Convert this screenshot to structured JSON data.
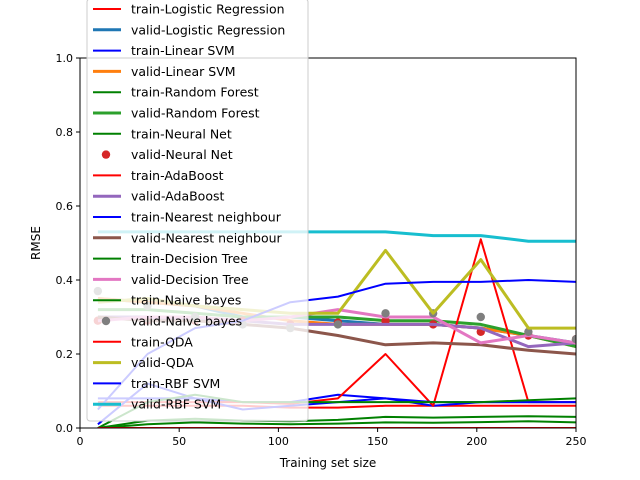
{
  "chart_data": {
    "type": "line",
    "title": "",
    "xlabel": "Training set size",
    "ylabel": "RMSE",
    "xlim": [
      0,
      250
    ],
    "ylim": [
      0.0,
      1.0
    ],
    "xticks": [
      0,
      50,
      100,
      150,
      200,
      250
    ],
    "xtick_labels": [
      "0",
      "50",
      "100",
      "150",
      "200",
      "250"
    ],
    "yticks": [
      0.0,
      0.2,
      0.4,
      0.6,
      0.8,
      1.0
    ],
    "ytick_labels": [
      "0.0",
      "0.2",
      "0.4",
      "0.6",
      "0.8",
      "1.0"
    ],
    "grid": false,
    "legend_position": "upper-left",
    "x": [
      9,
      34,
      58,
      82,
      106,
      130,
      154,
      178,
      202,
      226,
      250
    ],
    "series": [
      {
        "name": "train-Logistic Regression",
        "color": "#ff0000",
        "style": "line",
        "values": [
          0.06,
          0.06,
          0.06,
          0.06,
          0.055,
          0.055,
          0.06,
          0.06,
          0.06,
          0.06,
          0.06
        ]
      },
      {
        "name": "valid-Logistic Regression",
        "color": "#1f77b4",
        "style": "thick",
        "values": [
          0.35,
          0.34,
          0.33,
          0.3,
          0.3,
          0.29,
          0.28,
          0.28,
          0.27,
          0.25,
          0.23
        ]
      },
      {
        "name": "train-Linear SVM",
        "color": "#0000ff",
        "style": "line",
        "values": [
          0.08,
          0.08,
          0.08,
          0.07,
          0.07,
          0.09,
          0.08,
          0.06,
          0.07,
          0.07,
          0.07
        ]
      },
      {
        "name": "valid-Linear SVM",
        "color": "#ff7f0e",
        "style": "thick",
        "values": [
          0.35,
          0.34,
          0.33,
          0.31,
          0.29,
          0.28,
          0.28,
          0.28,
          0.27,
          0.25,
          0.22
        ]
      },
      {
        "name": "train-Random Forest",
        "color": "#008000",
        "style": "line",
        "values": [
          0.0,
          0.02,
          0.025,
          0.02,
          0.018,
          0.022,
          0.03,
          0.028,
          0.03,
          0.032,
          0.03
        ]
      },
      {
        "name": "valid-Random Forest",
        "color": "#2ca02c",
        "style": "thick",
        "values": [
          0.32,
          0.32,
          0.31,
          0.3,
          0.3,
          0.3,
          0.29,
          0.29,
          0.28,
          0.25,
          0.22
        ]
      },
      {
        "name": "train-Neural Net",
        "color": "#008000",
        "style": "line",
        "values": [
          0.0,
          0.01,
          0.015,
          0.012,
          0.01,
          0.012,
          0.015,
          0.014,
          0.016,
          0.018,
          0.015
        ]
      },
      {
        "name": "valid-Neural Net",
        "color": "#d62728",
        "style": "scatter",
        "values": [
          0.29,
          0.29,
          0.29,
          0.29,
          0.28,
          0.285,
          0.29,
          0.28,
          0.26,
          0.25,
          0.24
        ]
      },
      {
        "name": "train-AdaBoost",
        "color": "#ff0000",
        "style": "line",
        "values": [
          0.07,
          0.07,
          0.07,
          0.07,
          0.065,
          0.08,
          0.2,
          0.06,
          0.51,
          0.07,
          0.07
        ]
      },
      {
        "name": "valid-AdaBoost",
        "color": "#9467bd",
        "style": "thick",
        "values": [
          0.3,
          0.3,
          0.29,
          0.29,
          0.28,
          0.28,
          0.28,
          0.28,
          0.27,
          0.22,
          0.23
        ]
      },
      {
        "name": "train-Nearest neighbour",
        "color": "#0000ff",
        "style": "line",
        "values": [
          0.01,
          0.12,
          0.08,
          0.05,
          0.06,
          0.07,
          0.08,
          0.07,
          0.07,
          0.07,
          0.07
        ]
      },
      {
        "name": "valid-Nearest neighbour",
        "color": "#8c564b",
        "style": "thick",
        "values": [
          0.3,
          0.29,
          0.29,
          0.28,
          0.27,
          0.25,
          0.225,
          0.23,
          0.225,
          0.21,
          0.2
        ]
      },
      {
        "name": "train-Decision Tree",
        "color": "#008000",
        "style": "line",
        "values": [
          0.0,
          0.0,
          0.0,
          0.0,
          0.0,
          0.0,
          0.0,
          0.0,
          0.0,
          0.0,
          0.0
        ]
      },
      {
        "name": "valid-Decision Tree",
        "color": "#e377c2",
        "style": "thick",
        "values": [
          0.29,
          0.3,
          0.3,
          0.29,
          0.3,
          0.32,
          0.3,
          0.3,
          0.23,
          0.25,
          0.23
        ]
      },
      {
        "name": "train-Naive bayes",
        "color": "#008000",
        "style": "line",
        "values": [
          0.0,
          0.07,
          0.09,
          0.07,
          0.07,
          0.07,
          0.07,
          0.07,
          0.07,
          0.075,
          0.08
        ]
      },
      {
        "name": "valid-Naive bayes",
        "color": "#7f7f7f",
        "style": "scatter",
        "values": [
          0.37,
          0.33,
          0.3,
          0.28,
          0.27,
          0.28,
          0.31,
          0.31,
          0.3,
          0.26,
          0.24
        ]
      },
      {
        "name": "train-QDA",
        "color": "#ff0000",
        "style": "line",
        "values": [
          0.0,
          0.0,
          0.0,
          0.0,
          0.0,
          0.0,
          0.0,
          0.0,
          0.0,
          0.0,
          0.0
        ]
      },
      {
        "name": "valid-QDA",
        "color": "#bcbd22",
        "style": "thick",
        "values": [
          0.34,
          0.35,
          0.33,
          0.32,
          0.31,
          0.31,
          0.48,
          0.31,
          0.455,
          0.27,
          0.27
        ]
      },
      {
        "name": "train-RBF SVM",
        "color": "#0000ff",
        "style": "line",
        "values": [
          0.05,
          0.2,
          0.27,
          0.29,
          0.34,
          0.355,
          0.39,
          0.395,
          0.395,
          0.4,
          0.395
        ]
      },
      {
        "name": "valid-RBF SVM",
        "color": "#17becf",
        "style": "thick",
        "values": [
          0.53,
          0.53,
          0.53,
          0.53,
          0.53,
          0.53,
          0.53,
          0.52,
          0.52,
          0.505,
          0.505
        ]
      }
    ]
  }
}
